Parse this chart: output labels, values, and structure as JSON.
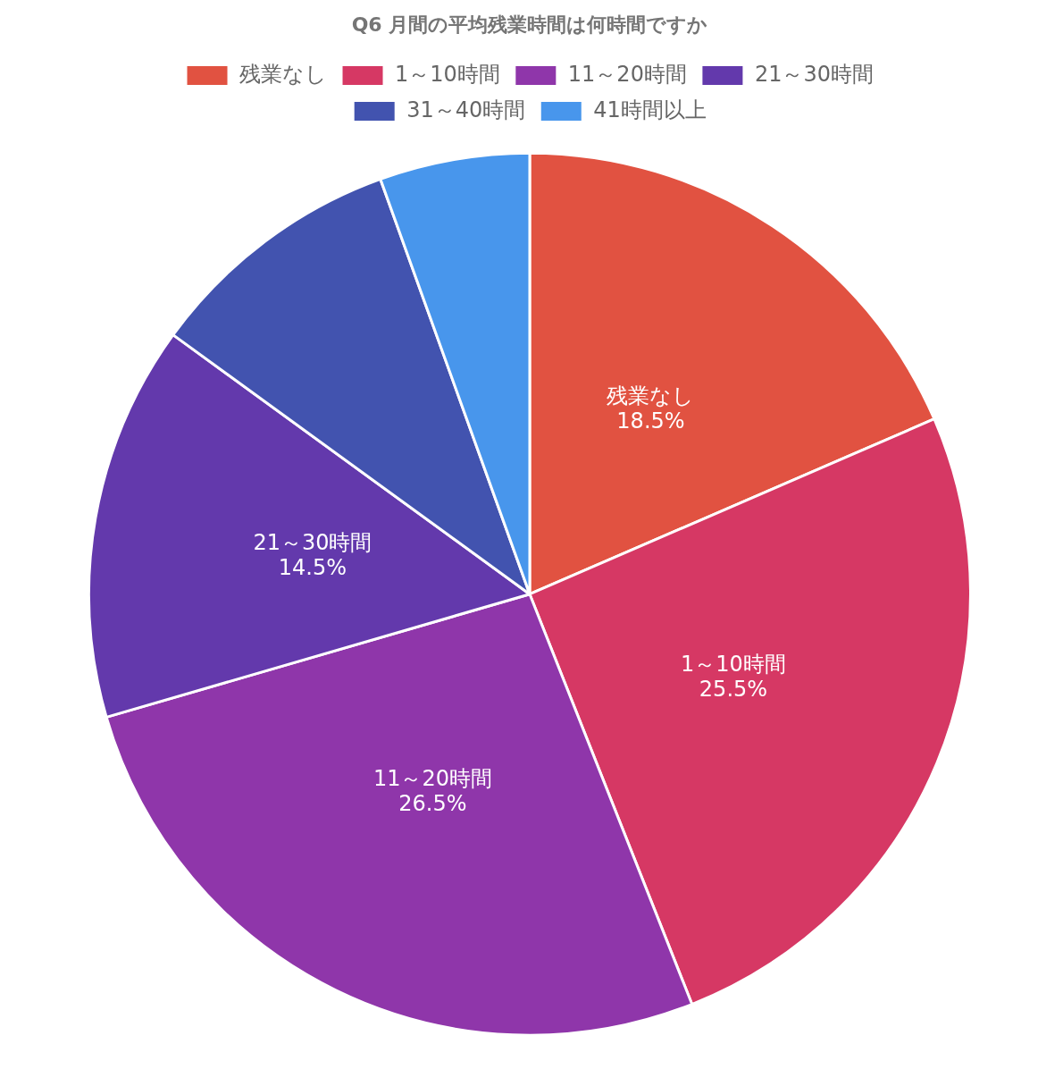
{
  "chart_data": {
    "type": "pie",
    "title": "Q6 月間の平均残業時間は何時間ですか",
    "categories": [
      "残業なし",
      "1～10時間",
      "11～20時間",
      "21～30時間",
      "31～40時間",
      "41時間以上"
    ],
    "values": [
      18.5,
      25.5,
      26.5,
      14.5,
      9.5,
      5.5
    ],
    "colors": [
      "#e15241",
      "#d63864",
      "#8f36aa",
      "#6339ac",
      "#4253af",
      "#4896ec"
    ],
    "value_labels": [
      "18.5%",
      "25.5%",
      "26.5%",
      "14.5%",
      null,
      null
    ],
    "legend": "top"
  }
}
